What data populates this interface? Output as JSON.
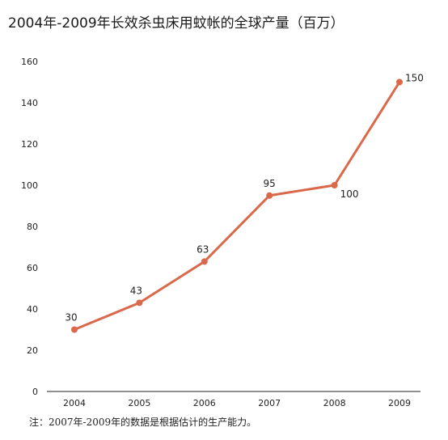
{
  "title": "2004年-2009年长效杀虫床用蚊帐的全球产量（百万）",
  "note": "注：2007年-2009年的数据是根据估计的生产能力。",
  "colors": {
    "line": "#d9694a",
    "axis": "#222222"
  },
  "chart_data": {
    "type": "line",
    "title": "2004年-2009年长效杀虫床用蚊帐的全球产量（百万）",
    "xlabel": "",
    "ylabel": "",
    "categories": [
      "2004",
      "2005",
      "2006",
      "2007",
      "2008",
      "2009"
    ],
    "values": [
      30,
      43,
      63,
      95,
      100,
      150
    ],
    "data_labels": [
      "30",
      "43",
      "63",
      "95",
      "100",
      "150"
    ],
    "ylim": [
      0,
      160
    ],
    "yticks": [
      0,
      20,
      40,
      60,
      80,
      100,
      120,
      140,
      160
    ],
    "grid": false,
    "legend": "none"
  }
}
